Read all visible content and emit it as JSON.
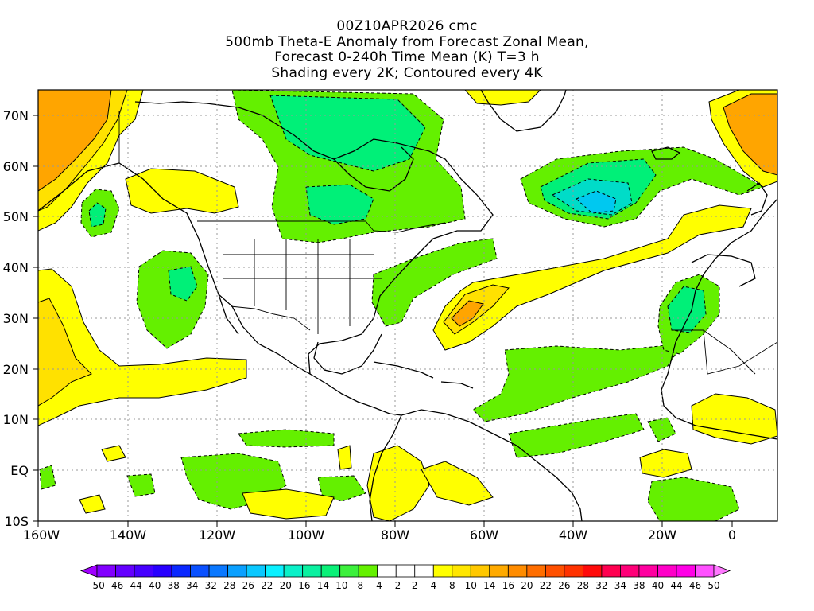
{
  "title": {
    "lines": [
      "00Z10APR2026 cmc",
      "500mb Theta-E Anomaly from Forecast Zonal Mean,",
      "Forecast 0-240h Time Mean (K) T=3 h",
      "Shading every 2K; Contoured every 4K"
    ]
  },
  "axes": {
    "x_ticks": [
      "160W",
      "140W",
      "120W",
      "100W",
      "80W",
      "60W",
      "40W",
      "20W",
      "0"
    ],
    "y_ticks": [
      "10S",
      "EQ",
      "10N",
      "20N",
      "30N",
      "40N",
      "50N",
      "60N",
      "70N"
    ],
    "grid": "dotted"
  },
  "colorbar": {
    "labels": [
      "-50",
      "-46",
      "-44",
      "-40",
      "-38",
      "-34",
      "-32",
      "-28",
      "-26",
      "-22",
      "-20",
      "-16",
      "-14",
      "-10",
      "-8",
      "-4",
      "-2",
      "2",
      "4",
      "8",
      "10",
      "14",
      "16",
      "20",
      "22",
      "26",
      "28",
      "32",
      "34",
      "38",
      "40",
      "44",
      "46",
      "50"
    ],
    "colors": [
      "#a000ff",
      "#8200ff",
      "#6400ff",
      "#4600ff",
      "#2800ff",
      "#0a28ff",
      "#0a50ff",
      "#0a78ff",
      "#0aa0ff",
      "#0ac8ff",
      "#0af0ff",
      "#0af0c8",
      "#0af0a0",
      "#0af078",
      "#3cf03c",
      "#64f000",
      "#ffffff",
      "#ffffff",
      "#ffffff",
      "#ffff00",
      "#ffe600",
      "#ffc800",
      "#ffaa00",
      "#ff8c00",
      "#ff6e00",
      "#ff5000",
      "#ff3200",
      "#ff0a0a",
      "#ff0050",
      "#ff0078",
      "#ff00a0",
      "#ff00c8",
      "#ff00e6",
      "#ff50ff",
      "#ff78ff"
    ]
  },
  "legend_colors": {
    "positive_2_4": "#ffff00",
    "positive_4_6": "#ffe100",
    "positive_6_8": "#ffa500",
    "negative_2_4": "#64f000",
    "negative_4_6": "#00f078",
    "negative_6_8": "#00dcc8",
    "negative_8_10": "#00c8f0"
  }
}
